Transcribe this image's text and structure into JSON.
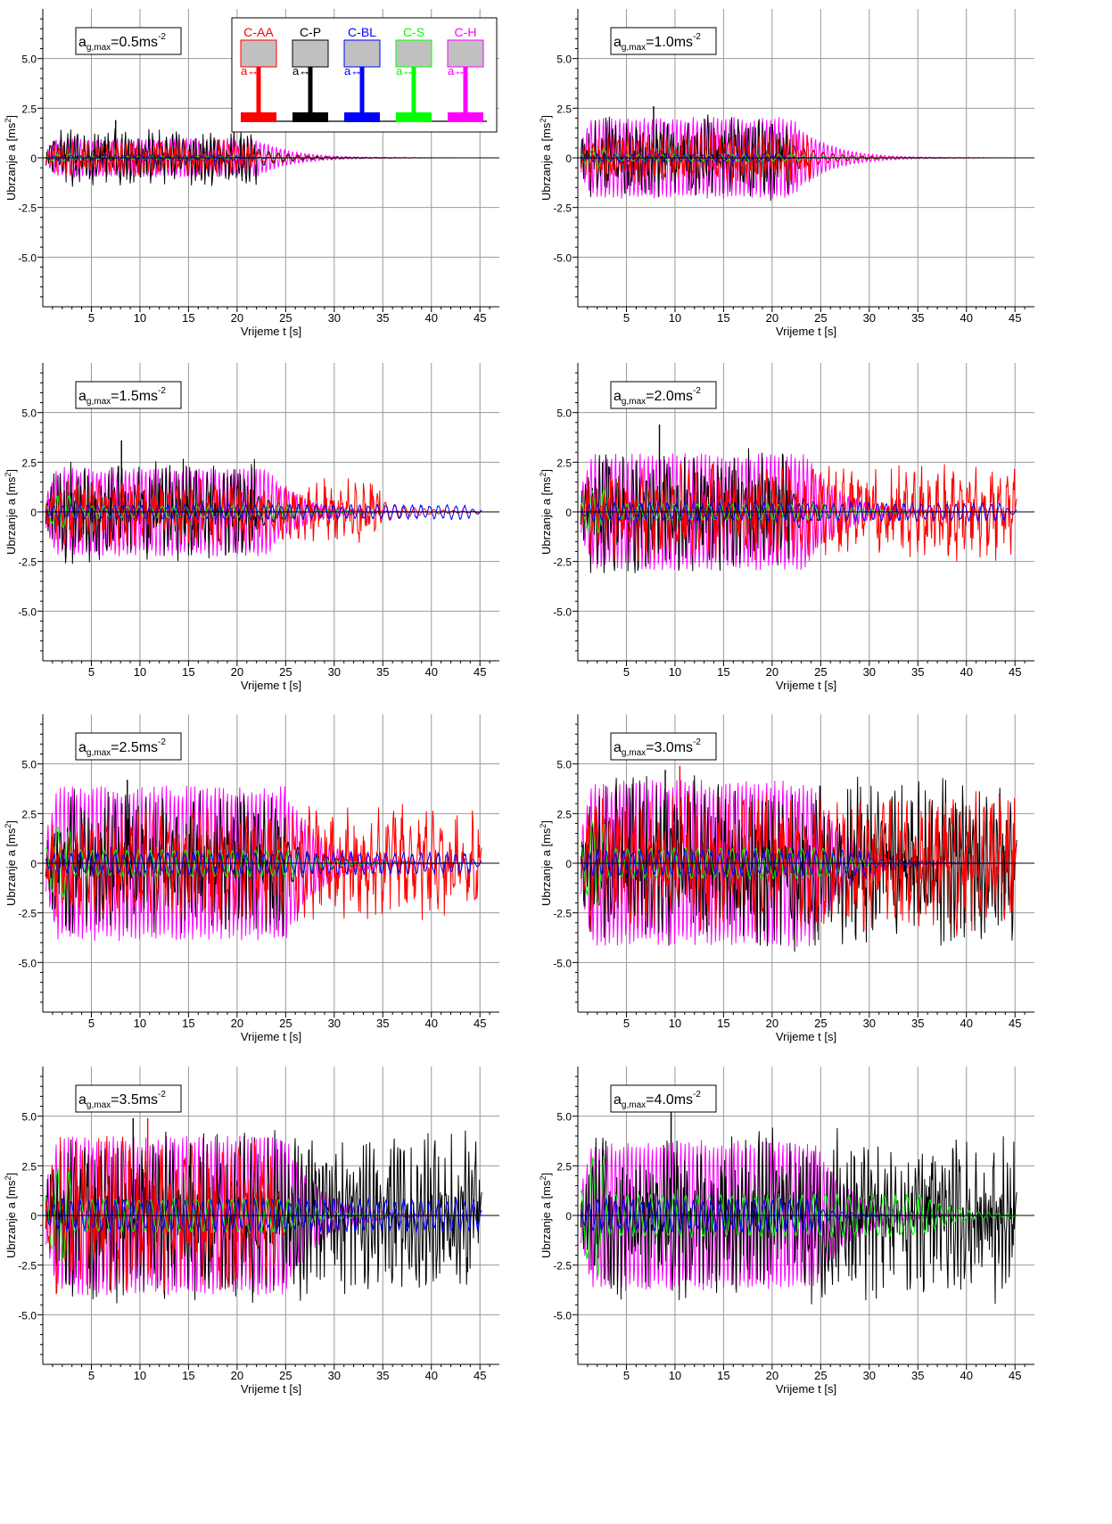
{
  "figure": {
    "xlabel": "Vrijeme t [s]",
    "ylabel": "Ubrzanje a  [ms²]",
    "ylabel_main": "Ubrzanje a  [ms",
    "ylabel_sup": "2",
    "ylabel_close": "]"
  },
  "legend": {
    "items": [
      {
        "name": "C-AA",
        "color": "#ff0000"
      },
      {
        "name": "C-P",
        "color": "#000000"
      },
      {
        "name": "C-BL",
        "color": "#0000ff"
      },
      {
        "name": "C-S",
        "color": "#00ff00"
      },
      {
        "name": "C-H",
        "color": "#ff00ff"
      }
    ],
    "arrow_label": "a↔",
    "column_color": "#c0c0c0"
  },
  "chart_data": [
    {
      "type": "line",
      "annotation": "a_g,max=0.5ms^-2",
      "annotation_parts": {
        "a": "a",
        "sub": "g,max",
        "value": "=0.5ms",
        "sup": "-2"
      },
      "xlim": [
        0,
        47
      ],
      "ylim": [
        -7.5,
        7.5
      ],
      "xticks": [
        5,
        10,
        15,
        20,
        25,
        30,
        35,
        40,
        45
      ],
      "yticks": [
        -5.0,
        -2.5,
        0,
        2.5,
        5.0
      ],
      "ytick_labels": [
        "-5.0",
        "-2.5",
        "0",
        "2.5",
        "5.0"
      ],
      "grid": true,
      "series": [
        {
          "name": "C-H",
          "color": "#ff00ff",
          "amp": 1.0,
          "end": 22.0,
          "period": 0.42
        },
        {
          "name": "C-P",
          "color": "#000000",
          "amp": 1.3,
          "end": 22.0,
          "period": 0.35,
          "peak": 1.9
        },
        {
          "name": "C-AA",
          "color": "#ff0000",
          "amp": 0.8,
          "end": 22.0,
          "period": 0.5
        },
        {
          "name": "C-S",
          "color": "#00ff00",
          "amp": 0.2,
          "end": 20.0,
          "period": 1.2
        },
        {
          "name": "C-BL",
          "color": "#0000ff",
          "amp": 0.15,
          "end": 20.0,
          "period": 0.9
        }
      ]
    },
    {
      "type": "line",
      "annotation": "a_g,max=1.0ms^-2",
      "annotation_parts": {
        "a": "a",
        "sub": "g,max",
        "value": "=1.0ms",
        "sup": "-2"
      },
      "xlim": [
        0,
        47
      ],
      "ylim": [
        -7.5,
        7.5
      ],
      "xticks": [
        5,
        10,
        15,
        20,
        25,
        30,
        35,
        40,
        45
      ],
      "yticks": [
        -5.0,
        -2.5,
        0,
        2.5,
        5.0
      ],
      "ytick_labels": [
        "-5.0",
        "-2.5",
        "0",
        "2.5",
        "5.0"
      ],
      "grid": true,
      "series": [
        {
          "name": "C-H",
          "color": "#ff00ff",
          "amp": 2.1,
          "end": 22.0,
          "period": 0.42
        },
        {
          "name": "C-P",
          "color": "#000000",
          "amp": 1.9,
          "end": 22.0,
          "period": 0.35,
          "peak": 2.6
        },
        {
          "name": "C-AA",
          "color": "#ff0000",
          "amp": 1.2,
          "end": 24.0,
          "period": 0.5
        },
        {
          "name": "C-S",
          "color": "#00ff00",
          "amp": 0.5,
          "end": 22.0,
          "period": 1.2
        },
        {
          "name": "C-BL",
          "color": "#0000ff",
          "amp": 0.2,
          "end": 20.0,
          "period": 0.9
        }
      ]
    },
    {
      "type": "line",
      "annotation": "a_g,max=1.5ms^-2",
      "annotation_parts": {
        "a": "a",
        "sub": "g,max",
        "value": "=1.5ms",
        "sup": "-2"
      },
      "xlim": [
        0,
        47
      ],
      "ylim": [
        -7.5,
        7.5
      ],
      "xticks": [
        5,
        10,
        15,
        20,
        25,
        30,
        35,
        40,
        45
      ],
      "yticks": [
        -5.0,
        -2.5,
        0,
        2.5,
        5.0
      ],
      "ytick_labels": [
        "-5.0",
        "-2.5",
        "0",
        "2.5",
        "5.0"
      ],
      "grid": true,
      "series": [
        {
          "name": "C-H",
          "color": "#ff00ff",
          "amp": 2.3,
          "end": 23.0,
          "period": 0.42
        },
        {
          "name": "C-P",
          "color": "#000000",
          "amp": 2.4,
          "end": 22.0,
          "period": 0.35,
          "peak": 3.6
        },
        {
          "name": "C-AA",
          "color": "#ff0000",
          "amp": 1.5,
          "end": 35.0,
          "period": 0.8
        },
        {
          "name": "C-S",
          "color": "#00ff00",
          "amp": 0.9,
          "end": 25.0,
          "period": 1.2
        },
        {
          "name": "C-BL",
          "color": "#0000ff",
          "amp": 0.4,
          "end": 44.0,
          "period": 0.9
        }
      ]
    },
    {
      "type": "line",
      "annotation": "a_g,max=2.0ms^-2",
      "annotation_parts": {
        "a": "a",
        "sub": "g,max",
        "value": "=2.0ms",
        "sup": "-2"
      },
      "xlim": [
        0,
        47
      ],
      "ylim": [
        -7.5,
        7.5
      ],
      "xticks": [
        5,
        10,
        15,
        20,
        25,
        30,
        35,
        40,
        45
      ],
      "yticks": [
        -5.0,
        -2.5,
        0,
        2.5,
        5.0
      ],
      "ytick_labels": [
        "-5.0",
        "-2.5",
        "0",
        "2.5",
        "5.0"
      ],
      "grid": true,
      "series": [
        {
          "name": "C-H",
          "color": "#ff00ff",
          "amp": 3.0,
          "end": 23.5,
          "period": 0.42
        },
        {
          "name": "C-P",
          "color": "#000000",
          "amp": 2.8,
          "end": 22.0,
          "period": 0.35,
          "peak": 4.4
        },
        {
          "name": "C-AA",
          "color": "#ff0000",
          "amp": 2.2,
          "end": 45.0,
          "period": 0.8
        },
        {
          "name": "C-S",
          "color": "#00ff00",
          "amp": 1.2,
          "end": 25.0,
          "period": 1.2
        },
        {
          "name": "C-BL",
          "color": "#0000ff",
          "amp": 0.5,
          "end": 44.0,
          "period": 0.9
        }
      ]
    },
    {
      "type": "line",
      "annotation": "a_g,max=2.5ms^-2",
      "annotation_parts": {
        "a": "a",
        "sub": "g,max",
        "value": "=2.5ms",
        "sup": "-2"
      },
      "xlim": [
        0,
        47
      ],
      "ylim": [
        -7.5,
        7.5
      ],
      "xticks": [
        5,
        10,
        15,
        20,
        25,
        30,
        35,
        40,
        45
      ],
      "yticks": [
        -5.0,
        -2.5,
        0,
        2.5,
        5.0
      ],
      "ytick_labels": [
        "-5.0",
        "-2.5",
        "0",
        "2.5",
        "5.0"
      ],
      "grid": true,
      "series": [
        {
          "name": "C-H",
          "color": "#ff00ff",
          "amp": 4.0,
          "end": 25.0,
          "period": 0.42
        },
        {
          "name": "C-P",
          "color": "#000000",
          "amp": 3.3,
          "end": 25.0,
          "period": 0.35,
          "peak": 4.2
        },
        {
          "name": "C-AA",
          "color": "#ff0000",
          "amp": 2.6,
          "end": 45.0,
          "period": 0.8
        },
        {
          "name": "C-S",
          "color": "#00ff00",
          "amp": 2.0,
          "end": 25.0,
          "period": 1.2
        },
        {
          "name": "C-BL",
          "color": "#0000ff",
          "amp": 0.6,
          "end": 44.0,
          "period": 0.9
        }
      ]
    },
    {
      "type": "line",
      "annotation": "a_g,max=3.0ms^-2",
      "annotation_parts": {
        "a": "a",
        "sub": "g,max",
        "value": "=3.0ms",
        "sup": "-2"
      },
      "xlim": [
        0,
        47
      ],
      "ylim": [
        -7.5,
        7.5
      ],
      "xticks": [
        5,
        10,
        15,
        20,
        25,
        30,
        35,
        40,
        45
      ],
      "yticks": [
        -5.0,
        -2.5,
        0,
        2.5,
        5.0
      ],
      "ytick_labels": [
        "-5.0",
        "-2.5",
        "0",
        "2.5",
        "5.0"
      ],
      "grid": true,
      "series": [
        {
          "name": "C-H",
          "color": "#ff00ff",
          "amp": 4.3,
          "end": 24.0,
          "period": 0.42
        },
        {
          "name": "C-P",
          "color": "#000000",
          "amp": 3.9,
          "end": 45.0,
          "period": 0.35,
          "peak": 4.7
        },
        {
          "name": "C-AA",
          "color": "#ff0000",
          "amp": 3.2,
          "end": 45.0,
          "period": 0.8,
          "peak": 4.9
        },
        {
          "name": "C-S",
          "color": "#00ff00",
          "amp": 2.3,
          "end": 25.0,
          "period": 1.2
        },
        {
          "name": "C-BL",
          "color": "#0000ff",
          "amp": 0.7,
          "end": 30.0,
          "period": 0.9
        }
      ]
    },
    {
      "type": "line",
      "annotation": "a_g,max=3.5ms^-2",
      "annotation_parts": {
        "a": "a",
        "sub": "g,max",
        "value": "=3.5ms",
        "sup": "-2"
      },
      "xlim": [
        0,
        47
      ],
      "ylim": [
        -7.5,
        7.5
      ],
      "xticks": [
        5,
        10,
        15,
        20,
        25,
        30,
        35,
        40,
        45
      ],
      "yticks": [
        -5.0,
        -2.5,
        0,
        2.5,
        5.0
      ],
      "ytick_labels": [
        "-5.0",
        "-2.5",
        "0",
        "2.5",
        "5.0"
      ],
      "grid": true,
      "series": [
        {
          "name": "C-H",
          "color": "#ff00ff",
          "amp": 4.1,
          "end": 25.0,
          "period": 0.42
        },
        {
          "name": "C-P",
          "color": "#000000",
          "amp": 3.9,
          "end": 45.0,
          "period": 0.35,
          "peak": 4.9
        },
        {
          "name": "C-AA",
          "color": "#ff0000",
          "amp": 3.5,
          "end": 24.0,
          "period": 0.8,
          "peak": 4.9
        },
        {
          "name": "C-S",
          "color": "#00ff00",
          "amp": 2.5,
          "end": 25.0,
          "period": 1.2
        },
        {
          "name": "C-BL",
          "color": "#0000ff",
          "amp": 0.9,
          "end": 45.0,
          "period": 0.9
        }
      ]
    },
    {
      "type": "line",
      "annotation": "a_g,max=4.0ms^-2",
      "annotation_parts": {
        "a": "a",
        "sub": "g,max",
        "value": "=4.0ms",
        "sup": "-2"
      },
      "xlim": [
        0,
        47
      ],
      "ylim": [
        -7.5,
        7.5
      ],
      "xticks": [
        5,
        10,
        15,
        20,
        25,
        30,
        35,
        40,
        45
      ],
      "yticks": [
        -5.0,
        -2.5,
        0,
        2.5,
        5.0
      ],
      "ytick_labels": [
        "-5.0",
        "-2.5",
        "0",
        "2.5",
        "5.0"
      ],
      "grid": true,
      "series": [
        {
          "name": "C-H",
          "color": "#ff00ff",
          "amp": 3.9,
          "end": 24.5,
          "period": 0.42
        },
        {
          "name": "C-P",
          "color": "#000000",
          "amp": 3.9,
          "end": 45.0,
          "period": 0.35,
          "peak": 5.2
        },
        {
          "name": "C-S",
          "color": "#00ff00",
          "amp": 3.2,
          "end": 35.0,
          "period": 1.2
        },
        {
          "name": "C-BL",
          "color": "#0000ff",
          "amp": 0.9,
          "end": 25.0,
          "period": 0.9
        }
      ]
    }
  ]
}
